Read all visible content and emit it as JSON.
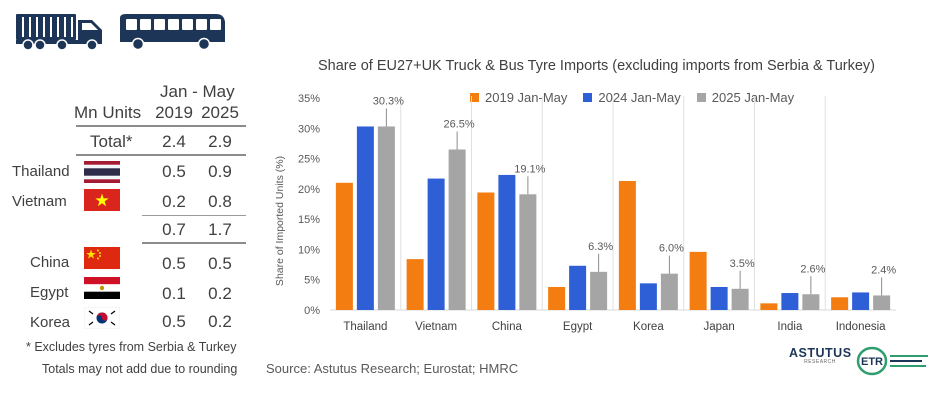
{
  "colors": {
    "dark_blue": "#1d3557",
    "orange": "#f47d12",
    "blue": "#2f5fd6",
    "gray": "#a5a5a5"
  },
  "icons": [
    "truck-icon",
    "bus-icon"
  ],
  "table": {
    "period": "Jan - May",
    "units_label": "Mn Units",
    "col_2019": "2019",
    "col_2025": "2025",
    "total_label": "Total*",
    "total_2019": "2.4",
    "total_2025": "2.9",
    "subtotal_2019": "0.7",
    "subtotal_2025": "1.7",
    "rows": [
      {
        "country": "Thailand",
        "v2019": "0.5",
        "v2025": "0.9",
        "flag": "thailand-flag"
      },
      {
        "country": "Vietnam",
        "v2019": "0.2",
        "v2025": "0.8",
        "flag": "vietnam-flag"
      },
      {
        "country": "China",
        "v2019": "0.5",
        "v2025": "0.5",
        "flag": "china-flag"
      },
      {
        "country": "Egypt",
        "v2019": "0.1",
        "v2025": "0.2",
        "flag": "egypt-flag"
      },
      {
        "country": "Korea",
        "v2019": "0.5",
        "v2025": "0.2",
        "flag": "korea-flag"
      }
    ],
    "note1": "* Excludes tyres from Serbia & Turkey",
    "note2": "Totals may not add due to rounding"
  },
  "chart_data": {
    "type": "bar",
    "title": "Share of EU27+UK Truck & Bus Tyre Imports (excluding imports from Serbia & Turkey)",
    "ylabel": "Share of Imported Units (%)",
    "xlabel": "",
    "ylim": [
      0,
      35
    ],
    "yticks": [
      "0%",
      "5%",
      "10%",
      "15%",
      "20%",
      "25%",
      "30%",
      "35%"
    ],
    "categories": [
      "Thailand",
      "Vietnam",
      "China",
      "Egypt",
      "Korea",
      "Japan",
      "India",
      "Indonesia"
    ],
    "series": [
      {
        "name": "2019 Jan-May",
        "color": "#f47d12",
        "values": [
          21.0,
          8.4,
          19.4,
          3.8,
          21.3,
          9.6,
          1.1,
          2.1
        ]
      },
      {
        "name": "2024 Jan-May",
        "color": "#2f5fd6",
        "values": [
          30.3,
          21.7,
          22.3,
          7.3,
          4.4,
          3.8,
          2.8,
          2.9
        ]
      },
      {
        "name": "2025 Jan-May",
        "color": "#a5a5a5",
        "values": [
          30.3,
          26.5,
          19.1,
          6.3,
          6.0,
          3.5,
          2.6,
          2.4
        ]
      }
    ],
    "data_labels": [
      "30.3%",
      "26.5%",
      "19.1%",
      "6.3%",
      "6.0%",
      "3.5%",
      "2.6%",
      "2.4%"
    ],
    "legend_position": "top"
  },
  "source": "Source: Astutus Research; Eurostat; HMRC",
  "logos": {
    "astutus": "ASTUTUS",
    "astutus_sub": "RESEARCH",
    "etr": "ETR"
  }
}
